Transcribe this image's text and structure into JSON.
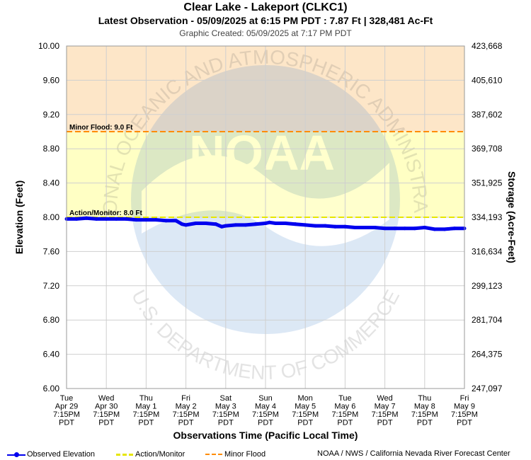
{
  "header": {
    "title": "Clear Lake - Lakeport (CLKC1)",
    "subtitle": "Latest Observation - 05/09/2025 at 6:15 PM PDT : 7.87 Ft | 328,481 Ac-Ft",
    "created": "Graphic Created: 05/09/2025 at 7:17 PM PDT"
  },
  "watermark": {
    "ring_top": "NATIONAL OCEANIC AND ATMOSPHERIC ADMINISTRATION",
    "ring_bottom": "U.S. DEPARTMENT OF COMMERCE",
    "center": "NOAA"
  },
  "chart_data": {
    "type": "line",
    "ylabel": "Elevation (Feet)",
    "y2label": "Storage (Acre-Feet)",
    "xlabel": "Observations Time (Pacific Local Time)",
    "ylim": [
      6.0,
      10.0
    ],
    "yticks": [
      "6.00",
      "6.40",
      "6.80",
      "7.20",
      "7.60",
      "8.00",
      "8.40",
      "8.80",
      "9.20",
      "9.60",
      "10.00"
    ],
    "y2ticks": [
      "247,097",
      "264,375",
      "281,704",
      "299,123",
      "316,634",
      "334,193",
      "351,925",
      "369,708",
      "387,602",
      "405,610",
      "423,668"
    ],
    "xticks": [
      [
        "Tue",
        "Apr 29",
        "7:15PM",
        "PDT"
      ],
      [
        "Wed",
        "Apr 30",
        "7:15PM",
        "PDT"
      ],
      [
        "Thu",
        "May 1",
        "7:15PM",
        "PDT"
      ],
      [
        "Fri",
        "May 2",
        "7:15PM",
        "PDT"
      ],
      [
        "Sat",
        "May 3",
        "7:15PM",
        "PDT"
      ],
      [
        "Sun",
        "May 4",
        "7:15PM",
        "PDT"
      ],
      [
        "Mon",
        "May 5",
        "7:15PM",
        "PDT"
      ],
      [
        "Tue",
        "May 6",
        "7:15PM",
        "PDT"
      ],
      [
        "Wed",
        "May 7",
        "7:15PM",
        "PDT"
      ],
      [
        "Thu",
        "May 8",
        "7:15PM",
        "PDT"
      ],
      [
        "Fri",
        "May 9",
        "7:15PM",
        "PDT"
      ]
    ],
    "thresholds": [
      {
        "name": "Minor Flood",
        "label": "Minor Flood: 9.0 Ft",
        "value": 9.0,
        "color": "#ff8c00"
      },
      {
        "name": "Action/Monitor",
        "label": "Action/Monitor: 8.0 Ft",
        "value": 8.0,
        "color": "#e6e600"
      }
    ],
    "zones": [
      {
        "from": 9.0,
        "to": 10.0,
        "color": "#fde6c8"
      },
      {
        "from": 8.0,
        "to": 9.0,
        "color": "#ffffc4"
      }
    ],
    "series": [
      {
        "name": "Observed Elevation",
        "color": "#0000ee",
        "x": [
          0.0,
          0.25,
          0.5,
          0.75,
          1.0,
          1.25,
          1.5,
          1.75,
          2.0,
          2.25,
          2.5,
          2.75,
          2.9,
          3.0,
          3.25,
          3.5,
          3.75,
          3.9,
          4.0,
          4.25,
          4.5,
          4.75,
          5.0,
          5.1,
          5.25,
          5.5,
          5.75,
          6.0,
          6.25,
          6.5,
          6.75,
          7.0,
          7.25,
          7.5,
          7.75,
          8.0,
          8.25,
          8.5,
          8.75,
          9.0,
          9.25,
          9.5,
          9.75,
          10.0
        ],
        "y": [
          7.98,
          7.98,
          7.99,
          7.98,
          7.98,
          7.98,
          7.98,
          7.97,
          7.97,
          7.97,
          7.96,
          7.96,
          7.92,
          7.91,
          7.93,
          7.93,
          7.92,
          7.89,
          7.9,
          7.91,
          7.91,
          7.92,
          7.93,
          7.94,
          7.93,
          7.93,
          7.92,
          7.91,
          7.9,
          7.9,
          7.89,
          7.89,
          7.88,
          7.88,
          7.88,
          7.87,
          7.87,
          7.87,
          7.87,
          7.88,
          7.86,
          7.86,
          7.87,
          7.87
        ]
      }
    ]
  },
  "legend": {
    "observed": "Observed Elevation",
    "action": "Action/Monitor",
    "flood": "Minor Flood",
    "credit": "NOAA / NWS / California Nevada River Forecast Center"
  }
}
